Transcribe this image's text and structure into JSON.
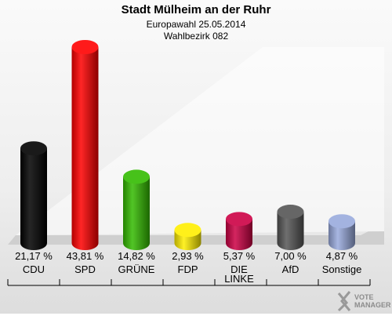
{
  "header": {
    "title": "Stadt Mülheim an der Ruhr",
    "subtitle": "Europawahl 25.05.2014",
    "subtitle2": "Wahlbezirk 082"
  },
  "chart_data": {
    "type": "bar",
    "categories": [
      "CDU",
      "SPD",
      "GRÜNE",
      "FDP",
      "DIE LINKE",
      "AfD",
      "Sonstige"
    ],
    "category_lines": [
      [
        "CDU"
      ],
      [
        "SPD"
      ],
      [
        "GRÜNE"
      ],
      [
        "FDP"
      ],
      [
        "DIE",
        "LINKE"
      ],
      [
        "AfD"
      ],
      [
        "Sonstige"
      ]
    ],
    "values": [
      21.17,
      43.81,
      14.82,
      2.93,
      5.37,
      7.0,
      4.87
    ],
    "value_labels": [
      "21,17 %",
      "43,81 %",
      "14,82 %",
      "2,93 %",
      "5,37 %",
      "7,00 %",
      "4,87 %"
    ],
    "colors": [
      "#000000",
      "#ff0000",
      "#33bb00",
      "#ffee00",
      "#cc0044",
      "#555555",
      "#99aadd"
    ],
    "ylim": [
      0,
      45
    ],
    "grid": false,
    "legend": "none"
  },
  "logo": {
    "line1": "VOTE",
    "line2": "MANAGER",
    "icon": "vote-manager-x-logo"
  }
}
